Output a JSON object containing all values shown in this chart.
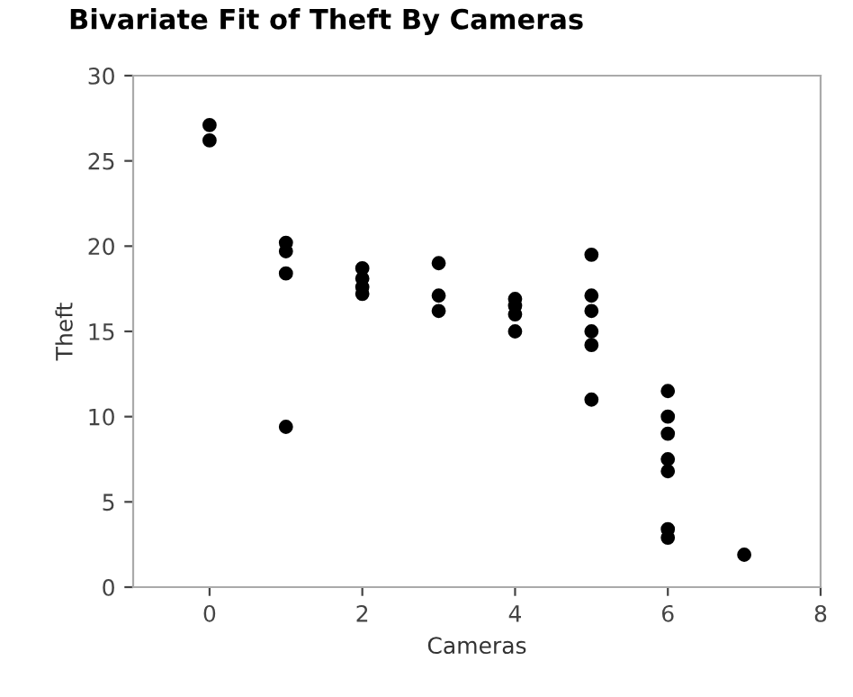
{
  "chart_data": {
    "type": "scatter",
    "title": "Bivariate Fit of Theft By Cameras",
    "xlabel": "Cameras",
    "ylabel": "Theft",
    "x": [
      0,
      0,
      1,
      1,
      1,
      1,
      2,
      2,
      2,
      2,
      3,
      3,
      3,
      4,
      4,
      4,
      4,
      5,
      5,
      5,
      5,
      5,
      5,
      6,
      6,
      6,
      6,
      6,
      6,
      6,
      7
    ],
    "values": [
      27.1,
      26.2,
      20.2,
      19.7,
      18.4,
      9.4,
      18.7,
      18.1,
      17.6,
      17.2,
      19.0,
      17.1,
      16.2,
      16.9,
      16.5,
      16.0,
      15.0,
      19.5,
      17.1,
      16.2,
      15.0,
      14.2,
      11.0,
      11.5,
      10.0,
      9.0,
      7.5,
      6.8,
      3.4,
      2.9,
      1.9
    ],
    "color": "#000000",
    "marker": "circle",
    "grid": false,
    "xlim": [
      -1,
      8
    ],
    "xticks": [
      0,
      2,
      4,
      6,
      8
    ],
    "ylim": [
      0,
      30
    ],
    "yticks": [
      0,
      5,
      10,
      15,
      20,
      25,
      30
    ]
  }
}
